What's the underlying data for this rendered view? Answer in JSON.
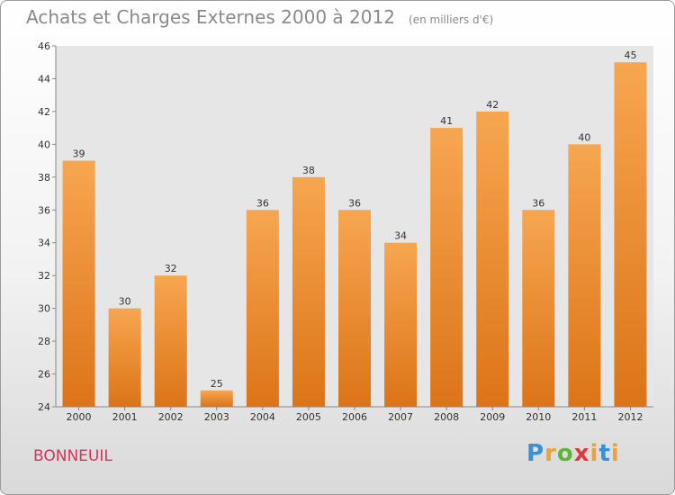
{
  "chart_data": {
    "type": "bar",
    "title": "Achats et Charges Externes 2000 à 2012",
    "unit": "(en milliers d'€)",
    "categories": [
      "2000",
      "2001",
      "2002",
      "2003",
      "2004",
      "2005",
      "2006",
      "2007",
      "2008",
      "2009",
      "2010",
      "2011",
      "2012"
    ],
    "values": [
      39,
      30,
      32,
      25,
      36,
      38,
      36,
      34,
      41,
      42,
      36,
      40,
      45
    ],
    "ylim": [
      24,
      46
    ],
    "yticks": [
      24,
      26,
      28,
      30,
      32,
      34,
      36,
      38,
      40,
      42,
      44,
      46
    ],
    "xlabel": "",
    "ylabel": "",
    "grid": false,
    "colors": {
      "bar_light": "#f7a650",
      "bar_dark": "#dc7418"
    }
  },
  "footer": {
    "city": "BONNEUIL",
    "logo_letters": [
      "P",
      "r",
      "o",
      "x",
      "i",
      "t",
      "i"
    ],
    "logo_colors": [
      "#3a8fd6",
      "#e8a33a",
      "#58b83a",
      "#e23a3a",
      "#e8a33a",
      "#3a8fd6",
      "#e8a33a"
    ],
    "city_color": "#d8335a"
  }
}
